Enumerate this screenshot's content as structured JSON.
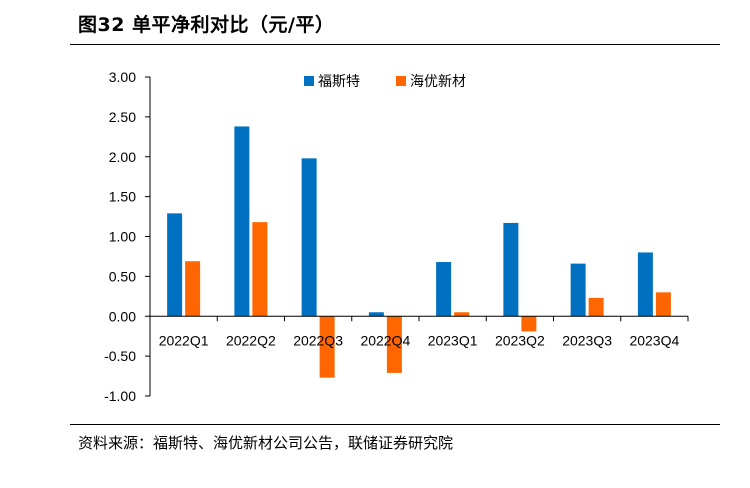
{
  "title": "图32 单平净利对比（元/平）",
  "source": "资料来源：福斯特、海优新材公司公告，联储证券研究院",
  "colors": {
    "series_1": "#0070C0",
    "series_2": "#FF6600",
    "axis": "#000000"
  },
  "chart_data": {
    "type": "bar",
    "categories": [
      "2022Q1",
      "2022Q2",
      "2022Q3",
      "2022Q4",
      "2023Q1",
      "2023Q2",
      "2023Q3",
      "2023Q4"
    ],
    "series": [
      {
        "name": "福斯特",
        "values": [
          1.29,
          2.38,
          1.98,
          0.05,
          0.68,
          1.17,
          0.66,
          0.8
        ]
      },
      {
        "name": "海优新材",
        "values": [
          0.69,
          1.18,
          -0.77,
          -0.71,
          0.05,
          -0.19,
          0.23,
          0.3
        ]
      }
    ],
    "ylim": [
      -1.0,
      3.0
    ],
    "yticks": [
      "3.00",
      "2.50",
      "2.00",
      "1.50",
      "1.00",
      "0.50",
      "0.00",
      "-0.50",
      "-1.00"
    ],
    "ytick_values": [
      3.0,
      2.5,
      2.0,
      1.5,
      1.0,
      0.5,
      0.0,
      -0.5,
      -1.0
    ],
    "legend_position": "top-center",
    "grid": false,
    "xlabel": "",
    "ylabel": ""
  }
}
